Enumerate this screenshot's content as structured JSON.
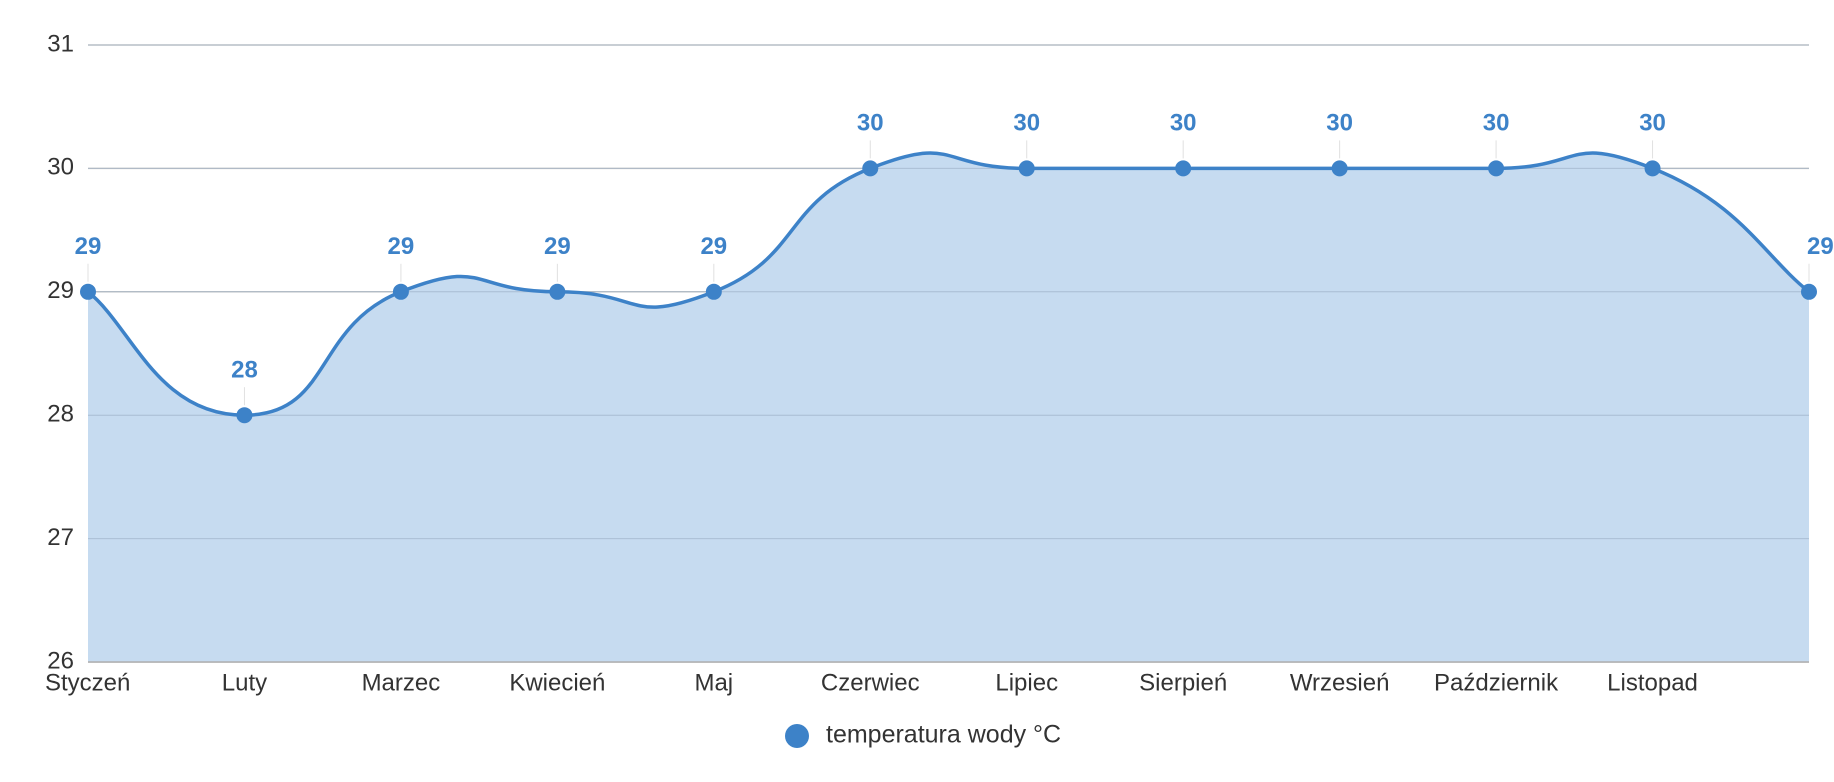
{
  "chart_data": {
    "type": "area",
    "categories": [
      "Styczeń",
      "Luty",
      "Marzec",
      "Kwiecień",
      "Maj",
      "Czerwiec",
      "Lipiec",
      "Sierpień",
      "Wrzesień",
      "Październik",
      "Listopad",
      ""
    ],
    "series": [
      {
        "name": "temperatura wody °C",
        "values": [
          29,
          28,
          29,
          29,
          29,
          30,
          30,
          30,
          30,
          30,
          30,
          29
        ]
      }
    ],
    "yticks": [
      26,
      27,
      28,
      29,
      30,
      31
    ],
    "ylim": [
      26,
      31
    ],
    "grid": true,
    "legend": "bottom-center",
    "colors": {
      "line": "#3d82c8",
      "fill": "#c3d9ef",
      "label": "#3d82c8",
      "grid": "#c8c8c8"
    }
  }
}
